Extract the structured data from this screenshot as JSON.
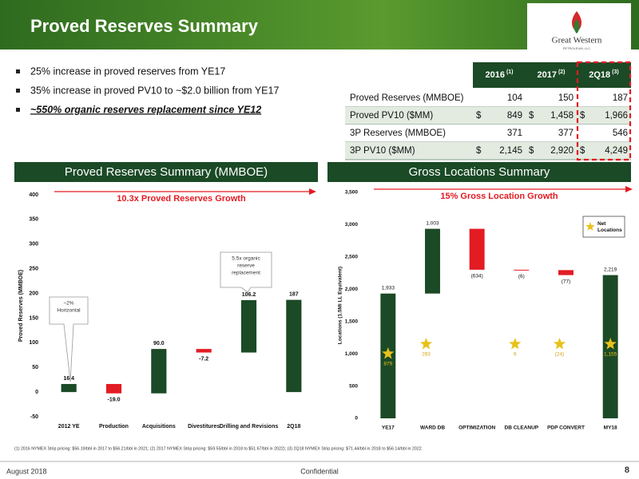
{
  "header": {
    "title": "Proved Reserves Summary",
    "logo": "Great Western",
    "logo_sub": "PETROLEUM, LLC"
  },
  "bullets": [
    "25% increase in proved reserves from YE17",
    "35% increase in proved PV10 to ~$2.0 billion from YE17",
    "~550% organic reserves replacement since YE12"
  ],
  "table": {
    "columns": [
      {
        "text": "2016",
        "note": "(1)"
      },
      {
        "text": "2017",
        "note": "(2)"
      },
      {
        "text": "2Q18",
        "note": "(3)"
      }
    ],
    "rows": [
      {
        "label": "Proved Reserves (MMBOE)",
        "cells": [
          "104",
          "150",
          "187"
        ]
      },
      {
        "label": "Proved PV10 ($MM)",
        "currency": "$",
        "cells": [
          "849",
          "1,458",
          "1,966"
        ]
      },
      {
        "label": "3P Reserves (MMBOE)",
        "cells": [
          "371",
          "377",
          "546"
        ]
      },
      {
        "label": "3P PV10 ($MM)",
        "currency": "$",
        "cells": [
          "2,145",
          "2,920",
          "4,249"
        ]
      }
    ]
  },
  "sections": [
    "Proved Reserves Summary (MMBOE)",
    "Gross Locations Summary"
  ],
  "chart_data": [
    {
      "type": "waterfall",
      "title": "10.3x Proved Reserves Growth",
      "ylabel": "Proved Reserves (MMBOE)",
      "categories": [
        "2012 YE",
        "Production",
        "Acquisitions",
        "Divestitures",
        "Drilling and Revisions",
        "2Q18"
      ],
      "values": [
        16.4,
        -19.0,
        90.0,
        -7.2,
        106.2,
        187
      ],
      "value_labels": [
        "16.4",
        "-19.0",
        "90.0",
        "-7.2",
        "106.2",
        "187"
      ],
      "colors": {
        "increase": "#1b4a26",
        "decrease": "#e31b23"
      },
      "ylim": [
        -50,
        400
      ],
      "yticks": [
        -50,
        0,
        50,
        100,
        150,
        200,
        250,
        300,
        350,
        400
      ],
      "annotations": [
        {
          "lines": [
            "~2%",
            "Horizontal"
          ]
        },
        {
          "lines": [
            "5.5x organic",
            "reserve",
            "replacement"
          ]
        }
      ]
    },
    {
      "type": "waterfall",
      "title": "15% Gross Location Growth",
      "ylabel": "Locations (1.5Mi LL Equivalent)",
      "categories": [
        "YE17",
        "WARD DB",
        "OPTIMIZATION",
        "DB CLEANUP",
        "PDP CONVERT",
        "MY18"
      ],
      "values": [
        1933,
        1003,
        -634,
        -6,
        -77,
        2219
      ],
      "value_labels": [
        "1,933",
        "1,003",
        "(634)",
        "(6)",
        "(77)",
        "2,219"
      ],
      "colors": {
        "increase": "#1b4a26",
        "decrease": "#e31b23"
      },
      "ylim": [
        0,
        3500
      ],
      "yticks": [
        0,
        500,
        {
          "value": 1000,
          "label": "1,000"
        },
        {
          "value": 1500,
          "label": "1,500"
        },
        {
          "value": 2000,
          "label": "2,000"
        },
        {
          "value": 2500,
          "label": "2,500"
        },
        {
          "value": 3000,
          "label": "3,000"
        },
        {
          "value": 3500,
          "label": "3,500"
        }
      ],
      "series": [
        {
          "name": "Net Locations",
          "color": "#e8c21a",
          "values": [
            879,
            293,
            null,
            6,
            -24,
            1155
          ],
          "value_labels": [
            "879",
            "293",
            null,
            "6",
            "(24)",
            "1,155"
          ]
        }
      ]
    }
  ],
  "footnote": "(1) 2016 NYMEX Strip pricing: $56.19/bbl in 2017 to $56.21/bbl in 2021; (2) 2017 NYMEX Strip pricing: $59.55/bbl in 2018 to $51.67/bbl in 2022); (3) 2Q18 NYMEX Strip pricing: $71.44/bbl in 2018 to $56.14/bbl in 2022.",
  "footer": {
    "date": "August 2018",
    "label": "Confidential",
    "page": "8"
  }
}
